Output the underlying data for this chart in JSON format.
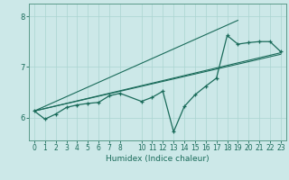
{
  "xlabel": "Humidex (Indice chaleur)",
  "bg_color": "#cce8e8",
  "line_color": "#1a6b5a",
  "grid_color": "#aad4d0",
  "spine_color": "#5a9a8a",
  "xlim": [
    -0.5,
    23.5
  ],
  "ylim": [
    5.55,
    8.25
  ],
  "yticks": [
    6,
    7,
    8
  ],
  "xticks": [
    0,
    1,
    2,
    3,
    4,
    5,
    6,
    7,
    8,
    10,
    11,
    12,
    13,
    14,
    15,
    16,
    17,
    18,
    19,
    20,
    21,
    22,
    23
  ],
  "xticklabels": [
    "0",
    "1",
    "2",
    "3",
    "4",
    "5",
    "6",
    "7",
    "8",
    "10",
    "11",
    "12",
    "13",
    "14",
    "15",
    "16",
    "17",
    "18",
    "19",
    "20",
    "21",
    "22",
    "23"
  ],
  "series1_x": [
    0,
    1,
    2,
    3,
    4,
    5,
    6,
    7,
    8,
    10,
    11,
    12,
    13,
    14,
    15,
    16,
    17,
    18,
    19,
    20,
    21,
    22,
    23
  ],
  "series1_y": [
    6.13,
    5.97,
    6.07,
    6.2,
    6.25,
    6.28,
    6.3,
    6.43,
    6.48,
    6.32,
    6.4,
    6.52,
    5.72,
    6.22,
    6.45,
    6.62,
    6.78,
    7.62,
    7.45,
    7.48,
    7.5,
    7.5,
    7.3
  ],
  "trendline1_x": [
    0,
    23
  ],
  "trendline1_y": [
    6.13,
    7.28
  ],
  "trendline2_x": [
    0,
    19
  ],
  "trendline2_y": [
    6.13,
    7.92
  ],
  "trendline3_x": [
    0,
    23
  ],
  "trendline3_y": [
    6.13,
    7.25
  ]
}
